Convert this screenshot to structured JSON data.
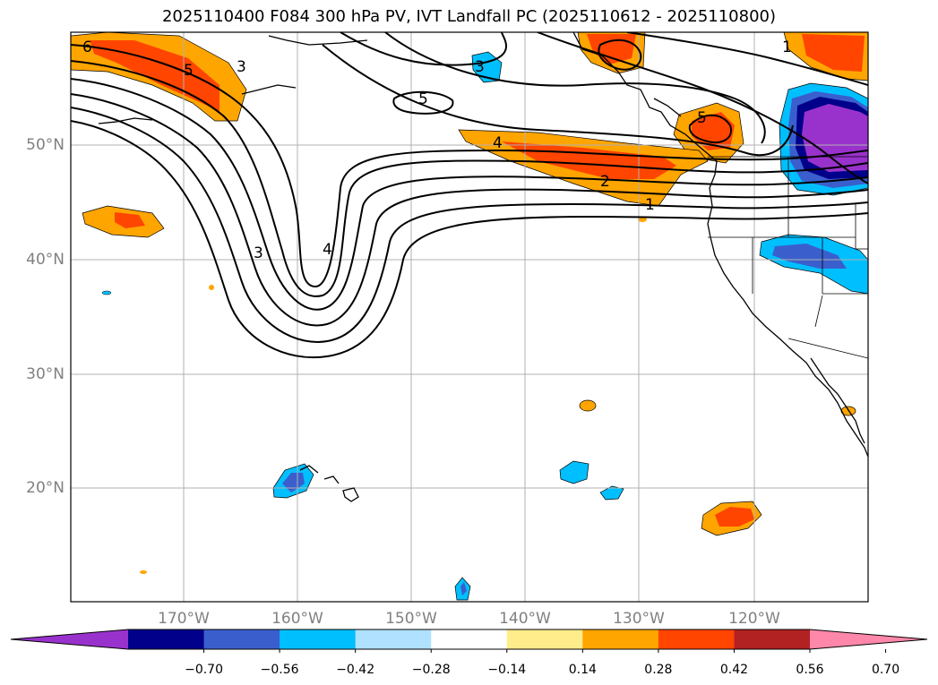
{
  "title": "2025110400 F084 300 hPa PV, IVT Landfall PC (2025110612 - 2025110800)",
  "lat_labels": [
    "50°N",
    "40°N",
    "30°N",
    "20°N"
  ],
  "lon_labels": [
    "170°W",
    "160°W",
    "150°W",
    "140°W",
    "130°W",
    "120°W"
  ],
  "colorbar": {
    "labels": [
      "−0.70",
      "−0.56",
      "−0.42",
      "−0.28",
      "−0.14",
      "0.14",
      "0.28",
      "0.42",
      "0.56",
      "0.70"
    ],
    "colors": [
      "#9932CC",
      "#00008B",
      "#3A5FCD",
      "#00BFFF",
      "#B0E2FF",
      "#FFFFFF",
      "#FFEC8B",
      "#FFA500",
      "#FF4500",
      "#B22222",
      "#FF88AA"
    ],
    "extend": "both"
  },
  "contour_labels": [
    "6",
    "5",
    "3",
    "3",
    "5",
    "4",
    "5",
    "1",
    "2",
    "1",
    "3",
    "4"
  ]
}
